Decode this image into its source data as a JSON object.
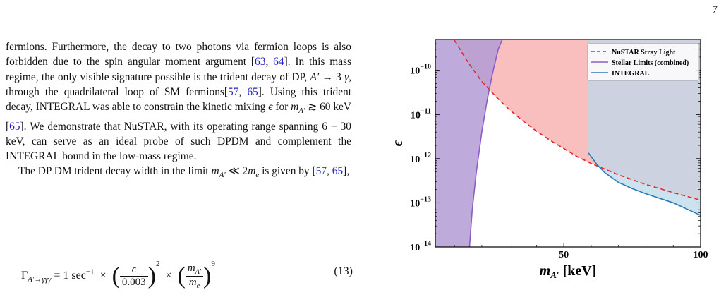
{
  "page_number": "7",
  "paragraphs": [
    {
      "segments": [
        {
          "t": "fermions. Furthermore, the decay to two photons via fermion loops is also forbidden due to the spin angular moment argument ["
        },
        {
          "t": "63",
          "ref": true
        },
        {
          "t": ", "
        },
        {
          "t": "64",
          "ref": true
        },
        {
          "t": "]. In this mass regime, the only visible signature possible is the trident decay of DP, "
        },
        {
          "t": "A′",
          "math": true
        },
        {
          "t": " → 3 "
        },
        {
          "t": "γ",
          "math": true
        },
        {
          "t": ", through the quadrilateral loop of SM fermions["
        },
        {
          "t": "57",
          "ref": true
        },
        {
          "t": ", "
        },
        {
          "t": "65",
          "ref": true
        },
        {
          "t": "]. Using this trident decay, INTEGRAL was able to constrain the kinetic mixing "
        },
        {
          "t": "ϵ",
          "math": true
        },
        {
          "t": " for "
        },
        {
          "t": "m",
          "math": true
        },
        {
          "t": "A′",
          "sub": true
        },
        {
          "t": " ≳ 60 keV ["
        },
        {
          "t": "65",
          "ref": true
        },
        {
          "t": "]. We demonstrate that NuSTAR, with its operating range spanning 6 − 30 keV, can serve as an ideal probe of such DPDM and complement the INTEGRAL bound in the low-mass regime."
        }
      ]
    },
    {
      "indent": true,
      "segments": [
        {
          "t": "The DP DM trident decay width in the limit "
        },
        {
          "t": "m",
          "math": true
        },
        {
          "t": "A′",
          "sub": true
        },
        {
          "t": " ≪ 2"
        },
        {
          "t": "m",
          "math": true
        },
        {
          "t": "e",
          "sub": true
        },
        {
          "t": " is given by ["
        },
        {
          "t": "57",
          "ref": true
        },
        {
          "t": ", "
        },
        {
          "t": "65",
          "ref": true
        },
        {
          "t": "],"
        }
      ]
    }
  ],
  "equation": {
    "gamma": "Γ",
    "gamma_sub": "A′→γγγ",
    "prefactor": " = 1 sec",
    "prefactor_exp": "−1",
    "times": "×",
    "frac1_num": "ϵ",
    "frac1_den": "0.003",
    "exp1": "2",
    "frac2_num": "m",
    "frac2_num_sub": "A′",
    "frac2_den": "m",
    "frac2_den_sub": "e",
    "exp2": "9",
    "number": "(13)"
  },
  "chart_data": {
    "type": "area",
    "xlabel": "m",
    "xlabel_sub": "A′",
    "xlabel_unit": " [keV]",
    "ylabel": "ϵ",
    "xlim": [
      3,
      100
    ],
    "ylim": [
      1e-14,
      5e-10
    ],
    "y_scale": "log",
    "x_ticks": [
      50,
      100
    ],
    "y_ticks": [
      {
        "value": 1e-14,
        "label": "10",
        "exp": "−14"
      },
      {
        "value": 1e-13,
        "label": "10",
        "exp": "−13"
      },
      {
        "value": 1e-12,
        "label": "10",
        "exp": "−12"
      },
      {
        "value": 1e-11,
        "label": "10",
        "exp": "−11"
      },
      {
        "value": 1e-10,
        "label": "10",
        "exp": "−10"
      }
    ],
    "legend_position": "top-right",
    "series": [
      {
        "name": "NuSTAR Stray Light",
        "color": "#e8242b",
        "fill": "#f7a9a9",
        "style": "dashed",
        "x": [
          10,
          15,
          20,
          25,
          30,
          35,
          40,
          45,
          50,
          55,
          60,
          70,
          80,
          90,
          100
        ],
        "y": [
          4.8e-10,
          1.5e-10,
          5.6e-11,
          2.6e-11,
          1.3e-11,
          7.2e-12,
          4.2e-12,
          2.6e-12,
          1.7e-12,
          1.1e-12,
          7.8e-13,
          4.3e-13,
          2.6e-13,
          1.7e-13,
          1.15e-13
        ]
      },
      {
        "name": "Stellar Limits (combined)",
        "color": "#8a5ec4",
        "fill": "#b49bd6",
        "style": "solid",
        "x": [
          15.5,
          16.5,
          18,
          20,
          22,
          24,
          26,
          27.5
        ],
        "y": [
          1e-14,
          7e-14,
          5e-13,
          4e-12,
          2.2e-11,
          9e-11,
          3e-10,
          5e-10
        ]
      },
      {
        "name": "INTEGRAL",
        "color": "#2a7ab8",
        "fill": "#bcd8ea",
        "style": "solid",
        "x": [
          59,
          62,
          65,
          70,
          75,
          80,
          90,
          100
        ],
        "y": [
          1.35e-12,
          7.5e-13,
          4.8e-13,
          2.9e-13,
          2.1e-13,
          1.6e-13,
          1e-13,
          5.2e-14
        ]
      }
    ]
  }
}
